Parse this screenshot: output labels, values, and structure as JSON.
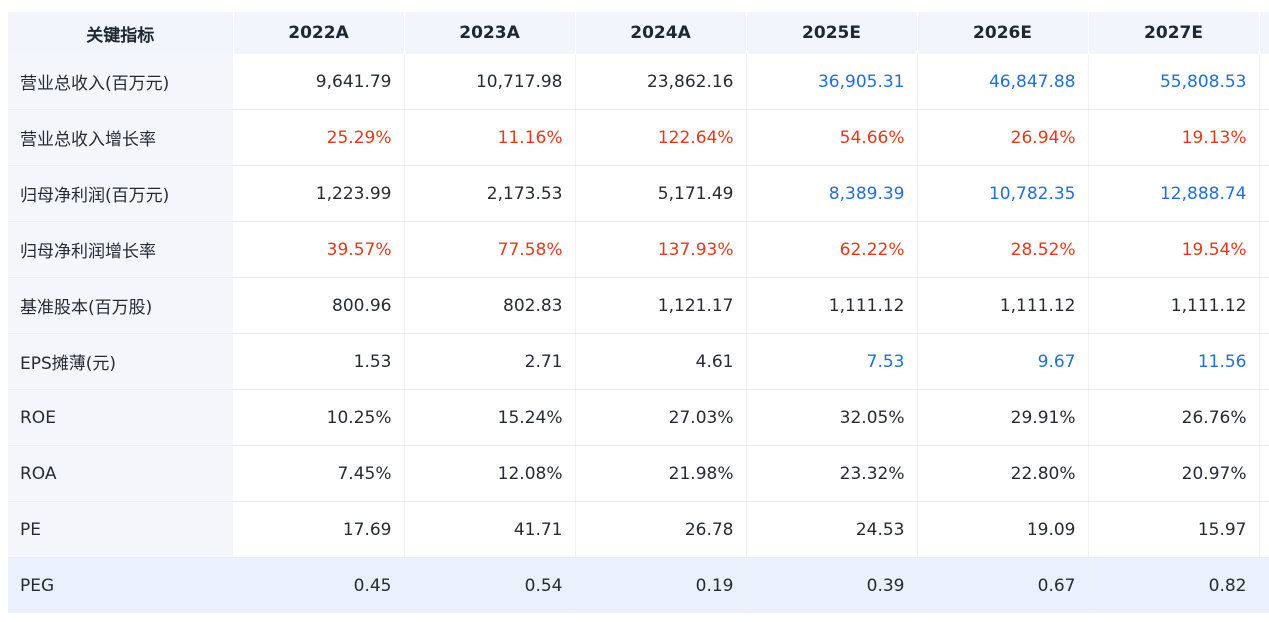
{
  "colors": {
    "growth": "#e8381b",
    "forecast": "#1f6fdb",
    "default": "#262b33"
  },
  "table": {
    "header": [
      "关键指标",
      "2022A",
      "2023A",
      "2024A",
      "2025E",
      "2026E",
      "2027E"
    ],
    "rows": [
      {
        "label": "营业总收入(百万元)",
        "values": [
          "9,641.79",
          "10,717.98",
          "23,862.16",
          "36,905.31",
          "46,847.88",
          "55,808.53"
        ],
        "colors": [
          "default",
          "default",
          "default",
          "forecast",
          "forecast",
          "forecast"
        ]
      },
      {
        "label": "营业总收入增长率",
        "values": [
          "25.29%",
          "11.16%",
          "122.64%",
          "54.66%",
          "26.94%",
          "19.13%"
        ],
        "colors": [
          "growth",
          "growth",
          "growth",
          "growth",
          "growth",
          "growth"
        ]
      },
      {
        "label": "归母净利润(百万元)",
        "values": [
          "1,223.99",
          "2,173.53",
          "5,171.49",
          "8,389.39",
          "10,782.35",
          "12,888.74"
        ],
        "colors": [
          "default",
          "default",
          "default",
          "forecast",
          "forecast",
          "forecast"
        ]
      },
      {
        "label": "归母净利润增长率",
        "values": [
          "39.57%",
          "77.58%",
          "137.93%",
          "62.22%",
          "28.52%",
          "19.54%"
        ],
        "colors": [
          "growth",
          "growth",
          "growth",
          "growth",
          "growth",
          "growth"
        ]
      },
      {
        "label": "基准股本(百万股)",
        "values": [
          "800.96",
          "802.83",
          "1,121.17",
          "1,111.12",
          "1,111.12",
          "1,111.12"
        ],
        "colors": [
          "default",
          "default",
          "default",
          "default",
          "default",
          "default"
        ]
      },
      {
        "label": "EPS摊薄(元)",
        "values": [
          "1.53",
          "2.71",
          "4.61",
          "7.53",
          "9.67",
          "11.56"
        ],
        "colors": [
          "default",
          "default",
          "default",
          "forecast",
          "forecast",
          "forecast"
        ]
      },
      {
        "label": "ROE",
        "values": [
          "10.25%",
          "15.24%",
          "27.03%",
          "32.05%",
          "29.91%",
          "26.76%"
        ],
        "colors": [
          "default",
          "default",
          "default",
          "default",
          "default",
          "default"
        ]
      },
      {
        "label": "ROA",
        "values": [
          "7.45%",
          "12.08%",
          "21.98%",
          "23.32%",
          "22.80%",
          "20.97%"
        ],
        "colors": [
          "default",
          "default",
          "default",
          "default",
          "default",
          "default"
        ]
      },
      {
        "label": "PE",
        "values": [
          "17.69",
          "41.71",
          "26.78",
          "24.53",
          "19.09",
          "15.97"
        ],
        "colors": [
          "default",
          "default",
          "default",
          "default",
          "default",
          "default"
        ]
      },
      {
        "label": "PEG",
        "values": [
          "0.45",
          "0.54",
          "0.19",
          "0.39",
          "0.67",
          "0.82"
        ],
        "colors": [
          "default",
          "default",
          "default",
          "default",
          "default",
          "default"
        ]
      }
    ]
  }
}
